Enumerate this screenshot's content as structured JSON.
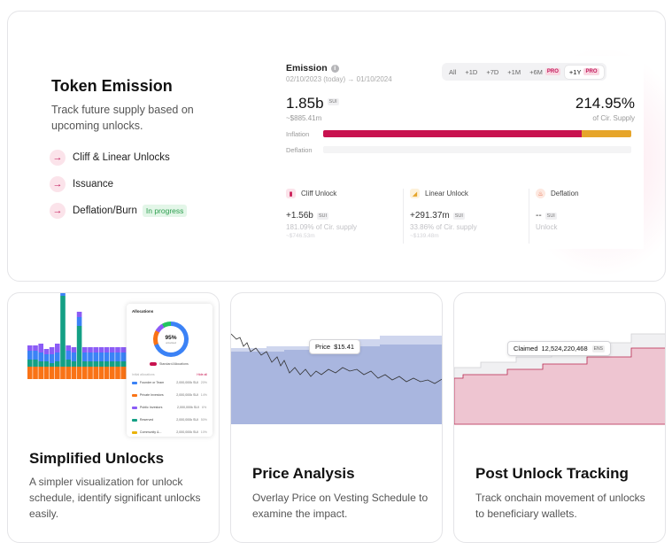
{
  "token_emission": {
    "title": "Token Emission",
    "subtitle": "Track future supply based on upcoming unlocks.",
    "features": [
      {
        "label": "Cliff & Linear Unlocks"
      },
      {
        "label": "Issuance"
      },
      {
        "label": "Deflation/Burn",
        "badge": "In progress"
      }
    ],
    "arrow_glyph": "→"
  },
  "emission_panel": {
    "title": "Emission",
    "info_glyph": "i",
    "date_start": "02/10/2023 (today)",
    "date_sep": " → ",
    "date_end": "01/10/2024",
    "ranges": [
      {
        "label": "All",
        "pro": false,
        "active": false
      },
      {
        "label": "+1D",
        "pro": false,
        "active": false
      },
      {
        "label": "+7D",
        "pro": false,
        "active": false
      },
      {
        "label": "+1M",
        "pro": false,
        "active": false
      },
      {
        "label": "+6M",
        "pro": true,
        "active": false
      },
      {
        "label": "+1Y",
        "pro": true,
        "active": true
      }
    ],
    "pro_label": "PRO",
    "amount": "1.85b",
    "amount_unit": "SUI",
    "amount_usd": "~$885.41m",
    "percent": "214.95%",
    "percent_sub": "of Cir. Supply",
    "inflation_label": "Inflation",
    "deflation_label": "Deflation",
    "inflation_split": [
      0.84,
      0.16
    ],
    "deflation_split": [
      0
    ],
    "colors": {
      "cliff": "#c8124f",
      "linear": "#e6a52a"
    },
    "stats": [
      {
        "name": "Cliff Unlock",
        "icon": "bar-chart-icon",
        "value": "+1.56b",
        "unit": "SUI",
        "sub": "181.09% of Cir. supply",
        "usd": "~$746.53m"
      },
      {
        "name": "Linear Unlock",
        "icon": "area-chart-icon",
        "value": "+291.37m",
        "unit": "SUI",
        "sub": "33.86% of Cir. supply",
        "usd": "~$139.48m"
      },
      {
        "name": "Deflation",
        "icon": "flame-icon",
        "value": "--",
        "unit": "SUI",
        "sub": "Unlock",
        "usd": ""
      }
    ]
  },
  "simplified_unlocks": {
    "title": "Simplified Unlocks",
    "description": "A simpler visualization for unlock schedule, identify significant unlocks easily.",
    "allocations": {
      "title": "Allocations",
      "percent": "95%",
      "percent_label": "unlocked",
      "toggle_label": "Standard Allocations",
      "header_left": "Initial allocations",
      "header_right": "Hide all",
      "rows": [
        {
          "name": "Founder or Team",
          "amount": "2,000,000k SUI",
          "pct": "20%",
          "color": "#3b82f6"
        },
        {
          "name": "Private Investors",
          "amount": "2,000,000k SUI",
          "pct": "14%",
          "color": "#f97316"
        },
        {
          "name": "Public Investors",
          "amount": "2,000,000k SUI",
          "pct": "6%",
          "color": "#8b5cf6"
        },
        {
          "name": "Reserved",
          "amount": "2,000,000k SUI",
          "pct": "50%",
          "color": "#14a085"
        },
        {
          "name": "Community &...",
          "amount": "2,000,000k SUI",
          "pct": "10%",
          "color": "#eab308"
        }
      ]
    }
  },
  "price_analysis": {
    "title": "Price Analysis",
    "description": "Overlay Price on Vesting Schedule to examine the impact.",
    "tooltip_label": "Price",
    "tooltip_value": "$15.41"
  },
  "post_unlock": {
    "title": "Post Unlock Tracking",
    "description": "Track onchain movement of unlocks to beneficiary wallets.",
    "tooltip_label": "Claimed",
    "tooltip_value": "12,524,220,468",
    "tooltip_unit": "ENS"
  }
}
